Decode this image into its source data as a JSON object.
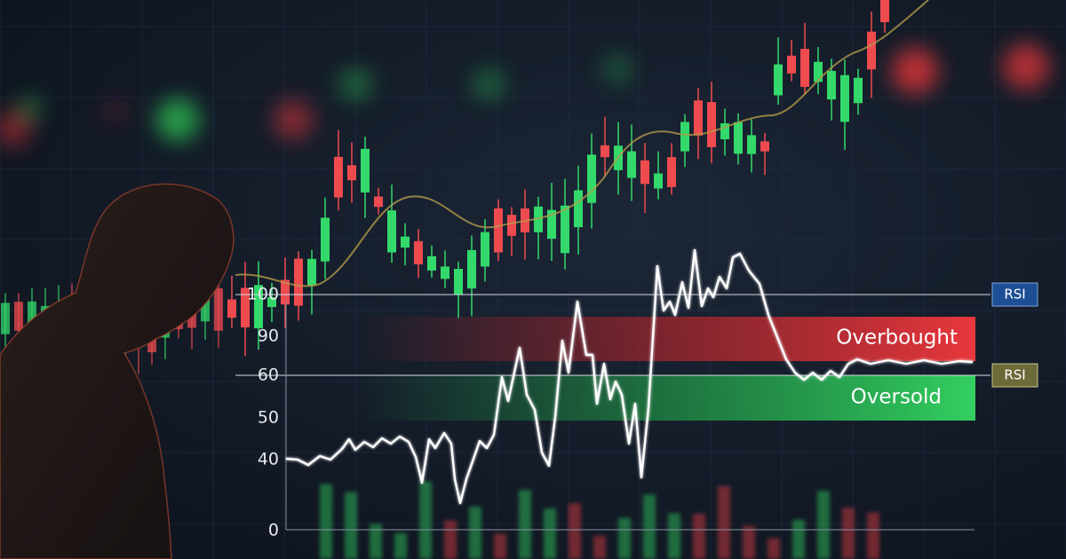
{
  "axis": {
    "labels": [
      100,
      90,
      60,
      50,
      40,
      0
    ]
  },
  "badges": [
    "RSI",
    "RSI"
  ],
  "zones": {
    "overbought": "Overbought",
    "oversold": "Oversold"
  }
}
